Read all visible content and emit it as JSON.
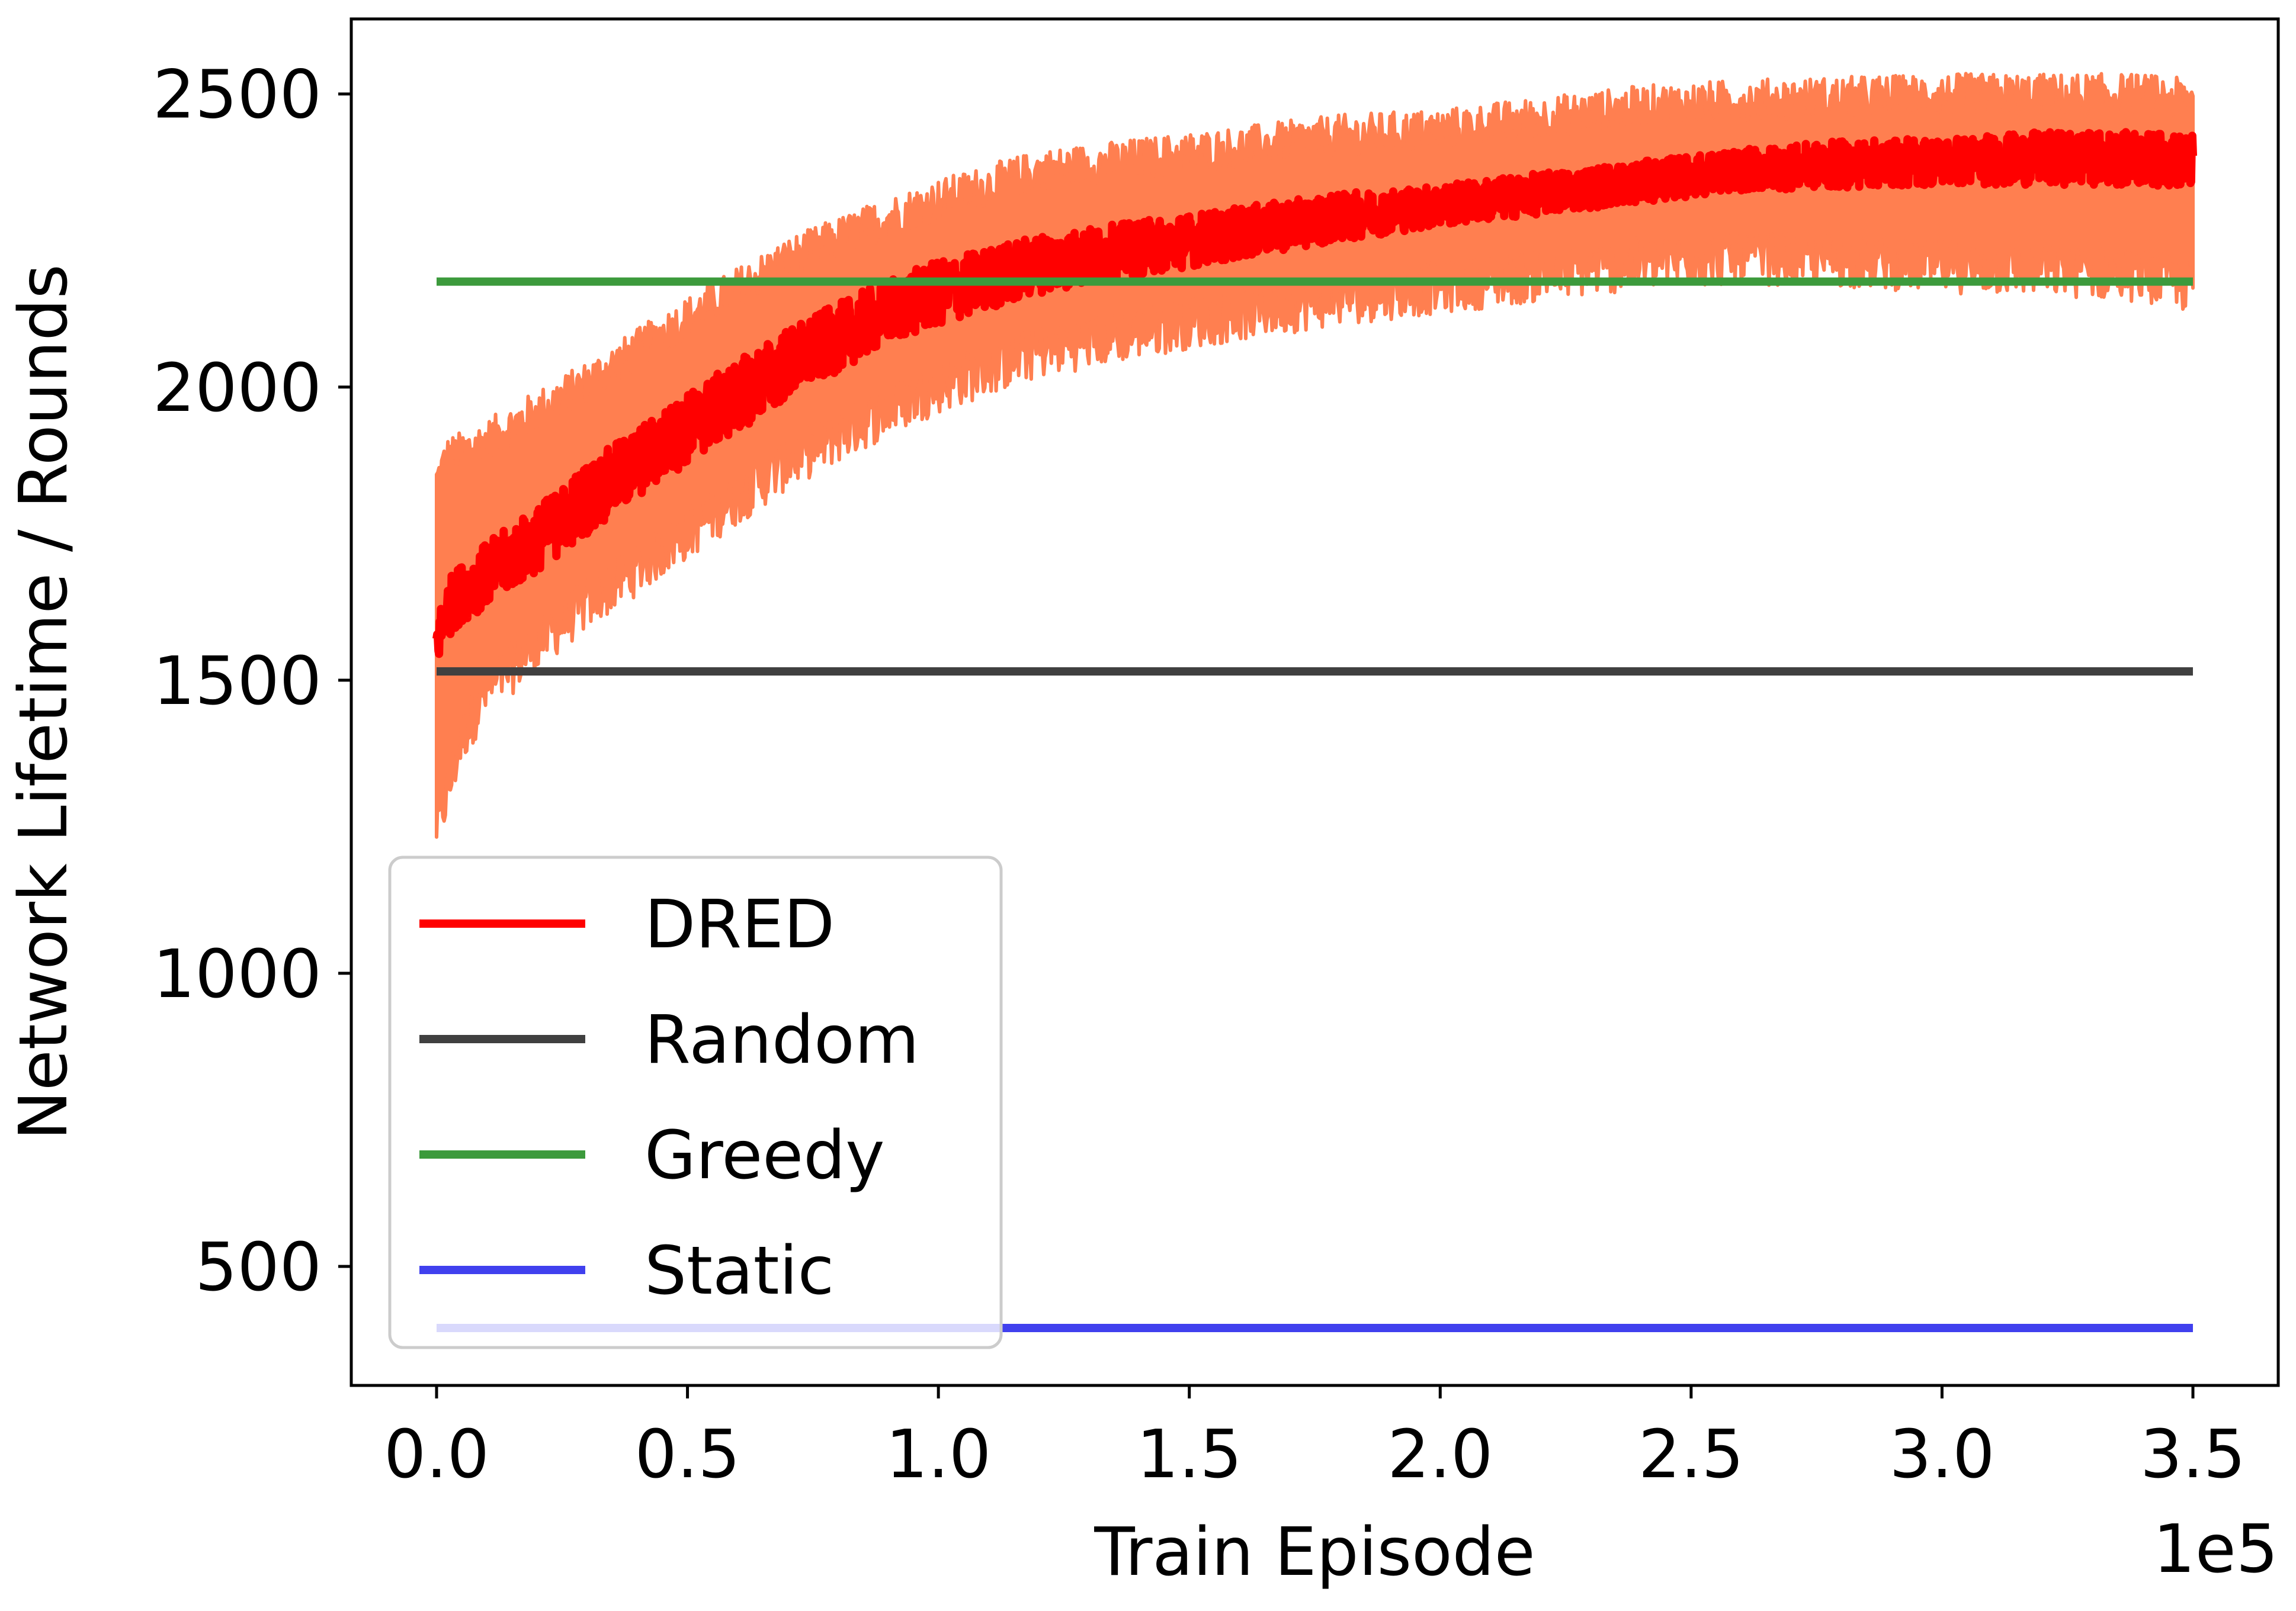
{
  "chart_data": {
    "type": "line",
    "title": "",
    "xlabel": "Train Episode",
    "ylabel": "Network Lifetime / Rounds",
    "x_offset_label": "1e5",
    "xlim": [
      -0.17,
      3.67
    ],
    "ylim": [
      297,
      2628
    ],
    "x_ticks": [
      0.0,
      0.5,
      1.0,
      1.5,
      2.0,
      2.5,
      3.0,
      3.5
    ],
    "x_tick_labels": [
      "0.0",
      "0.5",
      "1.0",
      "1.5",
      "2.0",
      "2.5",
      "3.0",
      "3.5"
    ],
    "y_ticks": [
      500,
      1000,
      1500,
      2000,
      2500
    ],
    "y_tick_labels": [
      "500",
      "1000",
      "1500",
      "2000",
      "2500"
    ],
    "grid": false,
    "legend_position": "lower-left",
    "series": [
      {
        "name": "DRED",
        "color": "#ff0000",
        "band_color": "#ff7f50",
        "x": [
          0.0,
          0.02,
          0.05,
          0.1,
          0.2,
          0.3,
          0.5,
          0.7,
          0.9,
          1.0,
          1.2,
          1.5,
          1.8,
          2.0,
          2.2,
          2.4,
          2.6,
          2.8,
          3.0,
          3.2,
          3.4,
          3.5
        ],
        "values": [
          1560,
          1620,
          1650,
          1680,
          1740,
          1810,
          1930,
          2040,
          2130,
          2160,
          2210,
          2250,
          2290,
          2310,
          2330,
          2350,
          2370,
          2380,
          2385,
          2390,
          2390,
          2385
        ],
        "spread": [
          40,
          50,
          50,
          55,
          55,
          60,
          60,
          60,
          55,
          55,
          50,
          45,
          40,
          35,
          35,
          35,
          35,
          40,
          40,
          45,
          45,
          45
        ],
        "band_lower": [
          1250,
          1300,
          1400,
          1480,
          1560,
          1630,
          1750,
          1870,
          1960,
          2000,
          2060,
          2110,
          2150,
          2170,
          2190,
          2210,
          2220,
          2215,
          2205,
          2200,
          2190,
          2170
        ],
        "band_upper": [
          1840,
          1880,
          1890,
          1910,
          1960,
          2010,
          2120,
          2220,
          2290,
          2320,
          2370,
          2400,
          2430,
          2440,
          2460,
          2480,
          2490,
          2495,
          2500,
          2500,
          2500,
          2490
        ]
      },
      {
        "name": "Random",
        "color": "#404040",
        "x": [
          0.0,
          3.5
        ],
        "values": [
          1515,
          1515
        ]
      },
      {
        "name": "Greedy",
        "color": "#3c9a3c",
        "x": [
          0.0,
          3.5
        ],
        "values": [
          2180,
          2180
        ]
      },
      {
        "name": "Static",
        "color": "#4040ee",
        "x": [
          0.0,
          3.5
        ],
        "values": [
          395,
          395
        ]
      }
    ]
  }
}
